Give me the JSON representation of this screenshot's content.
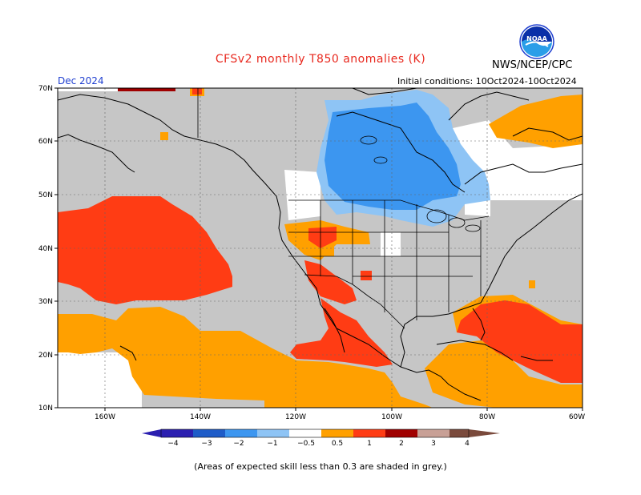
{
  "header": {
    "title": "CFSv2 monthly T850 anomalies (K)",
    "month": "Dec 2024",
    "agency": "NWS/NCEP/CPC",
    "initial_conditions": "Initial conditions: 10Oct2024-10Oct2024",
    "logo_text": "NOAA"
  },
  "map": {
    "lat_labels": [
      "70N",
      "60N",
      "50N",
      "40N",
      "30N",
      "20N",
      "10N"
    ],
    "lon_labels": [
      "160W",
      "140W",
      "120W",
      "100W",
      "80W",
      "60W"
    ],
    "colors": {
      "grey_low_skill": "#c6c6c6",
      "land_border": "#000000",
      "anom_0_5_1": "#ffa000",
      "anom_1_2": "#ff3c14",
      "anom_2_3": "#a00000",
      "anom_neg_1_0_5": "#8ec4f5",
      "anom_neg_2_1": "#3c96f0"
    }
  },
  "legend": {
    "labels": [
      "−4",
      "−3",
      "−2",
      "−1",
      "−0.5",
      "0.5",
      "1",
      "2",
      "3",
      "4"
    ],
    "colors": [
      "#2b1fb0",
      "#1e5cc8",
      "#3c96f0",
      "#8ec4f5",
      "#ffffff",
      "#ffa000",
      "#ff3c14",
      "#a00000",
      "#c8a096",
      "#7a4a3c"
    ]
  },
  "footnote": "(Areas of expected skill less than 0.3 are shaded in grey.)"
}
